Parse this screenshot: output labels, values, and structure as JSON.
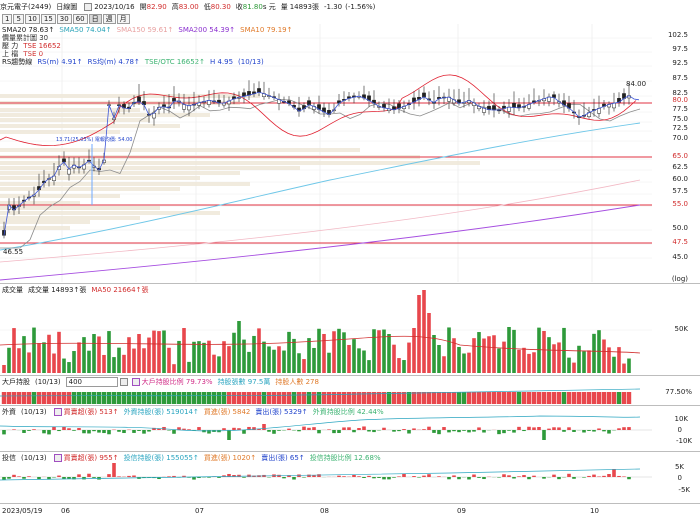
{
  "header": {
    "title": "京元電子(2449)",
    "period": "日線圖",
    "date": "2023/10/16",
    "open_label": "開",
    "open": "82.90",
    "high_label": "高",
    "high": "83.00",
    "low_label": "低",
    "low": "80.30",
    "close_label": "收",
    "close": "81.80",
    "close_unit": "s 元",
    "vol_label": "量",
    "volume": "14893",
    "vol_unit": "張",
    "change": "-1.30",
    "change_pct": "(-1.56%)"
  },
  "period_buttons": [
    "1",
    "5",
    "10",
    "15",
    "30",
    "60",
    "日",
    "週",
    "月"
  ],
  "legend_rows": {
    "ma_row": [
      {
        "text": "SMA20 78.63↑",
        "color": "#222222"
      },
      {
        "text": "SMA50 74.04↑",
        "color": "#29a3b8"
      },
      {
        "text": "SMA150 59.61↑",
        "color": "#e8a0a0"
      },
      {
        "text": "SMA200 54.39↑",
        "color": "#8a2ecf"
      },
      {
        "text": "SMA10 79.19↑",
        "color": "#e07a2a"
      }
    ],
    "pressure": "價量累計圖 30",
    "press_label": "壓 力",
    "press_value": "TSE 16652",
    "support_label": "上 檔",
    "support_value": "TSE 0",
    "rs_label": "RS趨勢線",
    "rs_items": [
      {
        "text": "RS(m) 4.91↑",
        "color": "#2244cc"
      },
      {
        "text": "RS均(m) 4.78↑",
        "color": "#2244cc"
      },
      {
        "text": "TSE/OTC 16652↑",
        "color": "#3cb371"
      },
      {
        "text": "H 4.95",
        "color": "#2244cc"
      },
      {
        "text": "(10/13)",
        "color": "#2244cc"
      }
    ]
  },
  "price_axis": [
    "102.5",
    "97.5",
    "92.5",
    "87.5",
    "82.5",
    "80.0",
    "77.5",
    "75.0",
    "72.5",
    "70.0",
    "65.0",
    "62.5",
    "60.0",
    "57.5",
    "55.0",
    "50.0",
    "47.5",
    "45.0"
  ],
  "annotations": {
    "high_price": "84.00",
    "low_price": "46.55",
    "mid_note": "13.71(25.03%) 電報均價: 54.00",
    "log_label": "(log)"
  },
  "volume_panel": {
    "title": "成交量",
    "value": "成交量 14893↑張",
    "ma": "MA50 21664↑張",
    "axis": [
      "50K"
    ]
  },
  "holders_panel": {
    "title": "大戶持股",
    "date": "(10/13)",
    "select_value": "400",
    "items": [
      {
        "text": "大戶持股比例 79.73%",
        "color": "#d12c87"
      },
      {
        "text": "持股張數 97.5萬",
        "color": "#2aa5c0"
      },
      {
        "text": "持股人數 278",
        "color": "#e07a2a"
      }
    ],
    "axis": "77.50%"
  },
  "foreign_panel": {
    "title": "外資",
    "date": "(10/13)",
    "items": [
      {
        "text": "買賣超(張) 513↑",
        "color": "#d12c2c"
      },
      {
        "text": "外資持股(張) 519014↑",
        "color": "#2aa5c0"
      },
      {
        "text": "買進(張) 5842",
        "color": "#e07a2a"
      },
      {
        "text": "賣出(張) 5329↑",
        "color": "#2244cc"
      },
      {
        "text": "外資持股比例 42.44%",
        "color": "#3cb371"
      }
    ],
    "axis": [
      "10K",
      "0",
      "-10K"
    ]
  },
  "trust_panel": {
    "title": "投信",
    "date": "(10/13)",
    "items": [
      {
        "text": "買賣超(張) 955↑",
        "color": "#d12c2c"
      },
      {
        "text": "投信持股(張) 155055↑",
        "color": "#2aa5c0"
      },
      {
        "text": "買進(張) 1020↑",
        "color": "#e07a2a"
      },
      {
        "text": "賣出(張) 65↑",
        "color": "#2244cc"
      },
      {
        "text": "投信持股比例 12.68%",
        "color": "#3cb371"
      }
    ],
    "axis": [
      "5K",
      "0",
      "-5K"
    ]
  },
  "time_axis": [
    "2023/05/19",
    "06",
    "07",
    "08",
    "09",
    "10"
  ],
  "colors": {
    "up": "#e8474c",
    "down": "#2e9a3a",
    "grid": "#d9d9d9",
    "support_line": "#e03040",
    "sma50": "#6fc7e8",
    "sma200": "#a64ee0",
    "sma150": "#f2b8c4",
    "rs": "#e02030"
  }
}
